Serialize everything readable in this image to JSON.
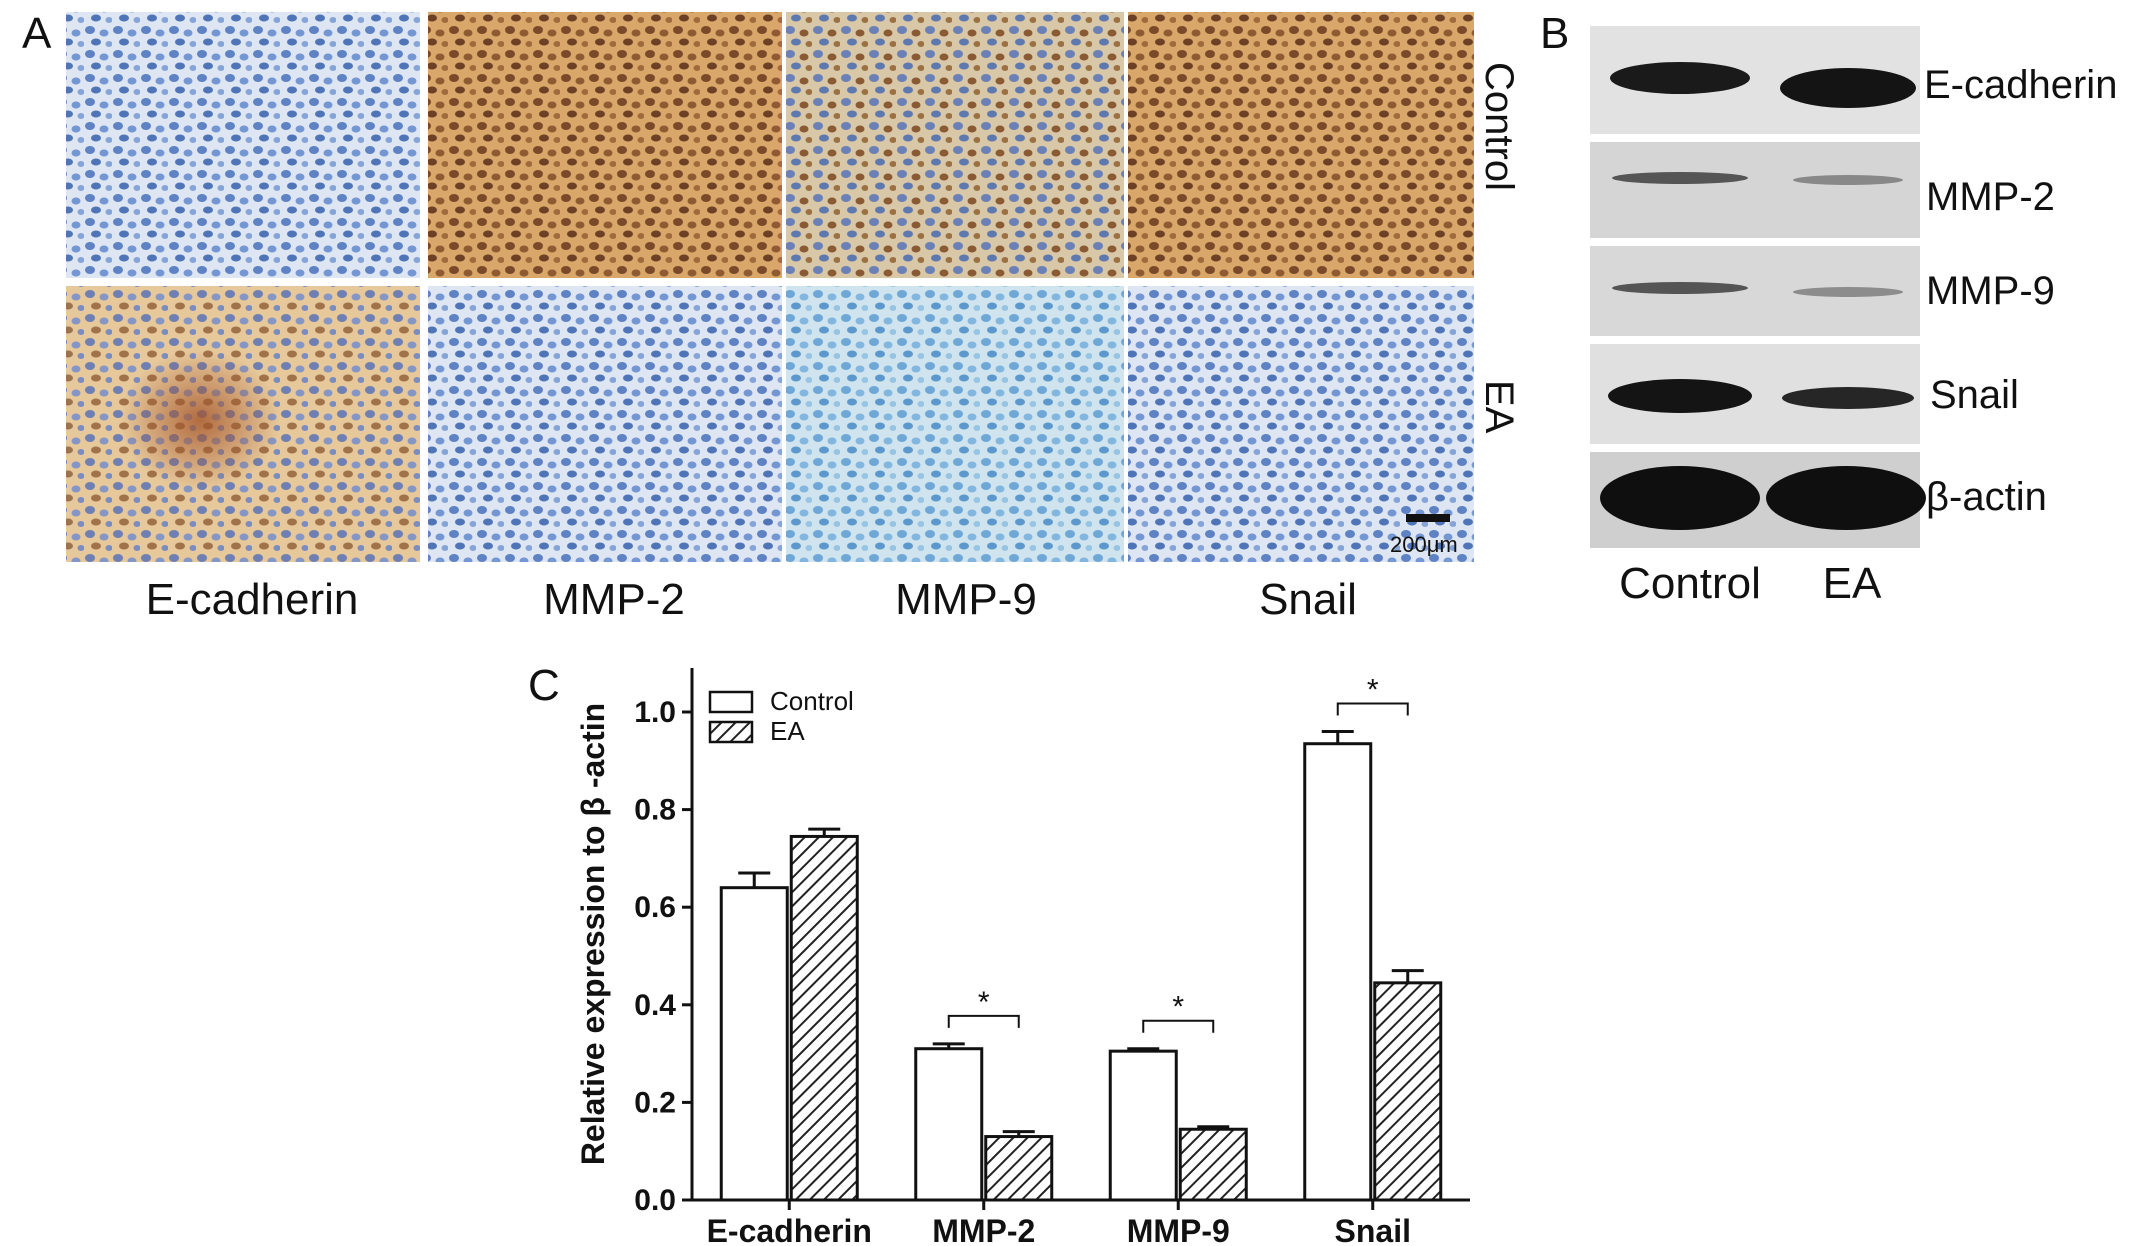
{
  "panels": {
    "a": {
      "letter": "A",
      "row_labels": [
        "Control",
        "EA"
      ],
      "column_labels": [
        "E-cadherin",
        "MMP-2",
        "MMP-9",
        "Snail"
      ],
      "scale_bar_label": "200μm"
    },
    "b": {
      "letter": "B",
      "protein_labels": [
        "E-cadherin",
        "MMP-2",
        "MMP-9",
        "Snail",
        "β-actin"
      ],
      "lane_labels": [
        "Control",
        "EA"
      ]
    },
    "c": {
      "letter": "C"
    }
  },
  "colors": {
    "control_bar": "#ffffff",
    "ea_bar_hatch": "#222222",
    "ihc_blue": "#7f9fd0",
    "ihc_brown": "#c8935a",
    "blot_background": "#d9d9d9",
    "blot_band": "#1a1a1a"
  },
  "chart_data": {
    "type": "bar",
    "title": "",
    "xlabel": "",
    "ylabel": "Relative expression to β -actin",
    "categories": [
      "E-cadherin",
      "MMP-2",
      "MMP-9",
      "Snail"
    ],
    "series": [
      {
        "name": "Control",
        "values": [
          0.64,
          0.31,
          0.305,
          0.935
        ],
        "errors": [
          0.03,
          0.01,
          0.005,
          0.025
        ]
      },
      {
        "name": "EA",
        "values": [
          0.745,
          0.13,
          0.145,
          0.445
        ],
        "errors": [
          0.015,
          0.01,
          0.005,
          0.025
        ]
      }
    ],
    "ylim": [
      0,
      1.0
    ],
    "yticks": [
      "0.0",
      "0.2",
      "0.4",
      "0.6",
      "0.8",
      "1.0"
    ],
    "yticks_values": [
      0,
      0.2,
      0.4,
      0.6,
      0.8,
      1.0
    ],
    "significance": [
      {
        "category": "MMP-2",
        "label": "*"
      },
      {
        "category": "MMP-9",
        "label": "*"
      },
      {
        "category": "Snail",
        "label": "*"
      }
    ],
    "legend_position": "top-left",
    "grid": false
  }
}
